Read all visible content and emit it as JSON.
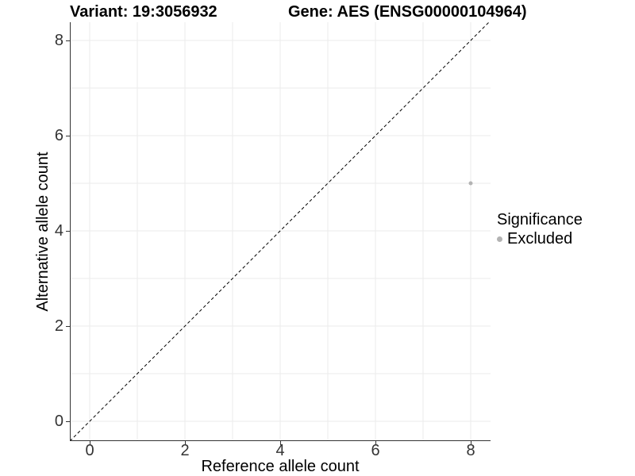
{
  "chart_data": {
    "type": "scatter",
    "title_left": "Variant: 19:3056932",
    "title_right": "Gene: AES (ENSG00000104964)",
    "xlabel": "Reference allele count",
    "ylabel": "Alternative allele count",
    "xlim": [
      -0.42,
      8.42
    ],
    "ylim": [
      -0.42,
      8.42
    ],
    "x_ticks": [
      0,
      2,
      4,
      6,
      8
    ],
    "y_ticks": [
      0,
      2,
      4,
      6,
      8
    ],
    "grid": {
      "interval": 1,
      "from": 0,
      "to": 8,
      "color": "#ebebeb",
      "visible": true
    },
    "reference_line": {
      "type": "identity",
      "equation": "y = x",
      "style": "dashed",
      "color": "#000000"
    },
    "series": [
      {
        "name": "Excluded",
        "color": "#b3b3b3",
        "points": [
          {
            "x": 8,
            "y": 5
          }
        ]
      }
    ],
    "legend": {
      "title": "Significance",
      "position": "right",
      "entries": [
        {
          "label": "Excluded",
          "color": "#b3b3b3",
          "marker": "circle"
        }
      ]
    },
    "colors": {
      "axis_line": "#333333",
      "tick_label": "#333333",
      "grid_line": "#ebebeb",
      "background": "#ffffff"
    }
  }
}
